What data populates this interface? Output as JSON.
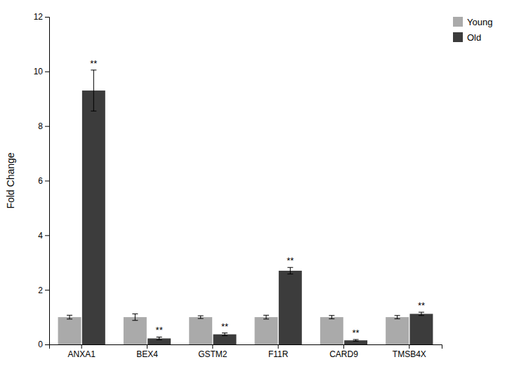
{
  "chart_data": {
    "type": "bar",
    "categories": [
      "ANXA1",
      "BEX4",
      "GSTM2",
      "F11R",
      "CARD9",
      "TMSB4X"
    ],
    "series": [
      {
        "name": "Young",
        "color": "#aaaaaa",
        "values": [
          1.0,
          1.0,
          1.0,
          1.0,
          1.0,
          1.0
        ],
        "errors": [
          0.07,
          0.12,
          0.05,
          0.07,
          0.06,
          0.06
        ]
      },
      {
        "name": "Old",
        "color": "#3c3c3c",
        "values": [
          9.3,
          0.22,
          0.37,
          2.7,
          0.15,
          1.12
        ],
        "errors": [
          0.75,
          0.05,
          0.05,
          0.12,
          0.03,
          0.06
        ]
      }
    ],
    "ylabel": "Fold Change",
    "ylim": [
      0,
      12
    ],
    "yticks": [
      0,
      2,
      4,
      6,
      8,
      10,
      12
    ],
    "grid": false,
    "legend": "upper right",
    "annotations": [
      {
        "text": "**",
        "series": "Old",
        "category": "ANXA1"
      },
      {
        "text": "**",
        "series": "Old",
        "category": "BEX4"
      },
      {
        "text": "**",
        "series": "Old",
        "category": "GSTM2"
      },
      {
        "text": "**",
        "series": "Old",
        "category": "F11R"
      },
      {
        "text": "**",
        "series": "Old",
        "category": "CARD9"
      },
      {
        "text": "**",
        "series": "Old",
        "category": "TMSB4X"
      }
    ]
  }
}
